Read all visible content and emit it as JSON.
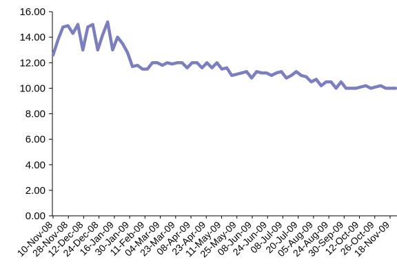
{
  "chart_data": {
    "type": "line",
    "title": "",
    "xlabel": "",
    "ylabel": "",
    "ylim": [
      0,
      16
    ],
    "yticks": [
      "0.00",
      "2.00",
      "4.00",
      "6.00",
      "8.00",
      "10.00",
      "12.00",
      "14.00",
      "16.00"
    ],
    "grid": false,
    "legend": "none",
    "line_color": "#7b7fbf",
    "x_tick_labels": [
      "10-Nov-08",
      "28-Nov-08",
      "12-Dec-08",
      "24-Dec-08",
      "16-Jan-09",
      "30-Jan-09",
      "11-Feb-09",
      "04-Mar-09",
      "23-Mar-09",
      "08-Apr-09",
      "23-Apr-09",
      "11-May-09",
      "25-May-09",
      "08-Jun-09",
      "24-Jun-09",
      "08-Jul-09",
      "20-Jul-09",
      "05-Aug-09",
      "24-Aug-09",
      "30-Sep-09",
      "12-Oct-09",
      "26-Oct-09",
      "18-Nov-09"
    ],
    "series": [
      {
        "values": [
          12.6,
          13.8,
          14.8,
          14.9,
          14.3,
          15.0,
          13.0,
          14.8,
          15.0,
          13.0,
          14.2,
          15.2,
          13.0,
          14.0,
          13.5,
          12.8,
          11.7,
          11.8,
          11.5,
          11.5,
          12.0,
          12.0,
          11.8,
          12.0,
          11.9,
          12.0,
          12.0,
          11.6,
          12.0,
          12.0,
          11.6,
          12.0,
          11.6,
          12.0,
          11.5,
          11.6,
          11.0,
          11.1,
          11.2,
          11.3,
          10.8,
          11.3,
          11.2,
          11.2,
          11.0,
          11.2,
          11.3,
          10.8,
          11.0,
          11.3,
          11.0,
          10.9,
          10.5,
          10.7,
          10.2,
          10.5,
          10.5,
          10.0,
          10.5,
          10.0,
          10.0,
          10.0,
          10.1,
          10.2,
          10.0,
          10.1,
          10.2,
          10.0,
          10.0,
          10.0
        ]
      }
    ]
  }
}
